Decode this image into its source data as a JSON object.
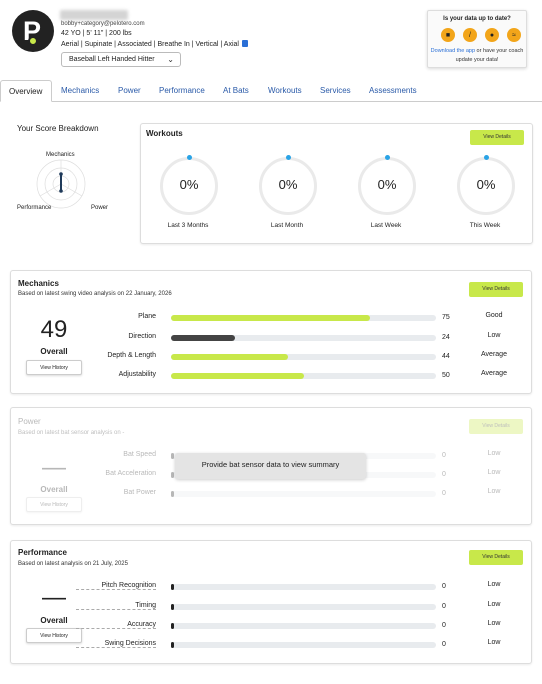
{
  "profile": {
    "name": "Bobby Category",
    "email": "bobby+category@pelotero.com",
    "vitals": "42 YO | 5' 11\" | 200 lbs",
    "tags": "Aerial | Supinate | Associated | Breathe In | Vertical | Axial",
    "hitter_type": "Baseball Left Handed Hitter",
    "logo_letter": "P"
  },
  "data_prompt": {
    "title": "Is your data up to date?",
    "link_text": "Download the app",
    "rest": " or have your coach update your data!",
    "icons": [
      "video-icon",
      "bat-icon",
      "sensor-icon",
      "wifi-icon"
    ]
  },
  "tabs": [
    "Overview",
    "Mechanics",
    "Power",
    "Performance",
    "At Bats",
    "Workouts",
    "Services",
    "Assessments"
  ],
  "score_breakdown": {
    "title": "Your Score Breakdown",
    "axes": [
      "Mechanics",
      "Performance",
      "Power"
    ]
  },
  "workouts": {
    "title": "Workouts",
    "button": "View Details",
    "rings": [
      {
        "value": "0%",
        "label": "Last 3 Months"
      },
      {
        "value": "0%",
        "label": "Last Month"
      },
      {
        "value": "0%",
        "label": "Last Week"
      },
      {
        "value": "0%",
        "label": "This Week"
      }
    ]
  },
  "mechanics": {
    "title": "Mechanics",
    "subtitle": "Based on latest swing video analysis on 22 January, 2026",
    "button": "View Details",
    "score": "49",
    "overall": "Overall",
    "history": "View History",
    "metrics": [
      {
        "label": "Plane",
        "value": "75",
        "level": "Good",
        "fill": 0.75
      },
      {
        "label": "Direction",
        "value": "24",
        "level": "Low",
        "fill": 0.24
      },
      {
        "label": "Depth & Length",
        "value": "44",
        "level": "Average",
        "fill": 0.44
      },
      {
        "label": "Adjustability",
        "value": "50",
        "level": "Average",
        "fill": 0.5
      }
    ]
  },
  "power": {
    "title": "Power",
    "subtitle": "Based on latest bat sensor analysis on -",
    "button": "View Details",
    "score": "—",
    "overall": "Overall",
    "history": "View History",
    "overlay": "Provide bat sensor data to view summary",
    "metrics": [
      {
        "label": "Bat Speed",
        "value": "0",
        "level": "Low",
        "fill": 0
      },
      {
        "label": "Bat Acceleration",
        "value": "0",
        "level": "Low",
        "fill": 0
      },
      {
        "label": "Bat Power",
        "value": "0",
        "level": "Low",
        "fill": 0
      }
    ]
  },
  "performance": {
    "title": "Performance",
    "subtitle": "Based on latest analysis on 21 July, 2025",
    "button": "View Details",
    "score": "—",
    "overall": "Overall",
    "history": "View History",
    "metrics": [
      {
        "label": "Pitch Recognition",
        "value": "0",
        "level": "Low",
        "fill": 0
      },
      {
        "label": "Timing",
        "value": "0",
        "level": "Low",
        "fill": 0
      },
      {
        "label": "Accuracy",
        "value": "0",
        "level": "Low",
        "fill": 0
      },
      {
        "label": "Swing Decisions",
        "value": "0",
        "level": "Low",
        "fill": 0
      }
    ]
  },
  "colors": {
    "accent": "#c8e84a",
    "dark_fill": "#444444",
    "blue": "#29a3e6",
    "tab_link": "#2a5aa8"
  }
}
